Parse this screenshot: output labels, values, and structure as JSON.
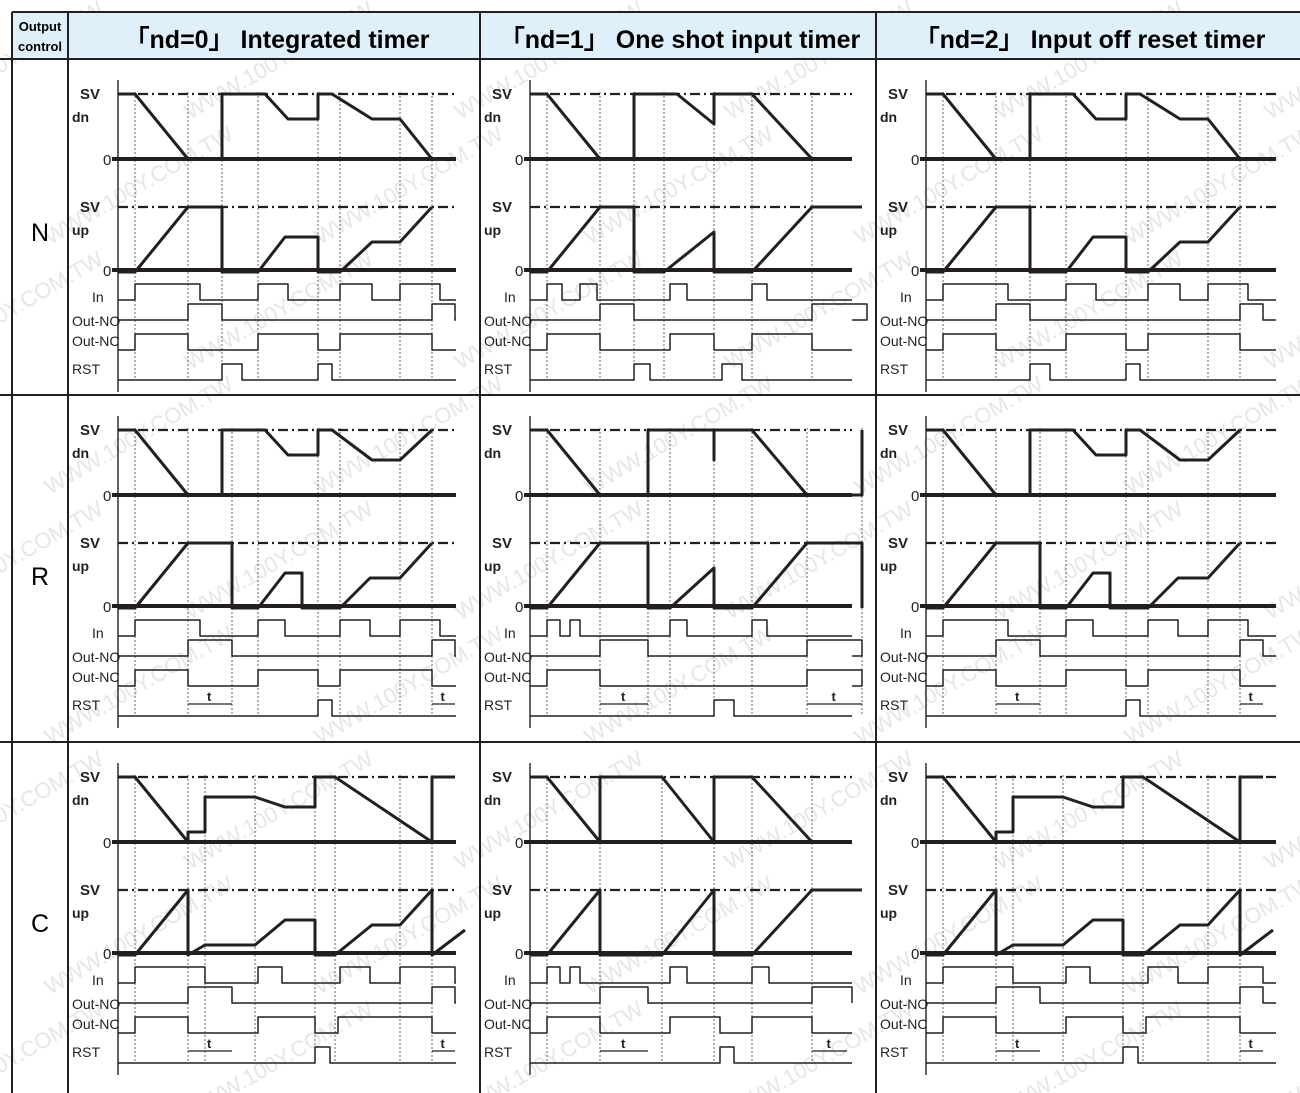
{
  "header": {
    "corner_line1": "Output",
    "corner_line2": "control",
    "columns": [
      "「nd=0」 Integrated timer",
      "「nd=1」 One shot input  timer",
      "「nd=2」 Input  off  reset  timer"
    ]
  },
  "rows": [
    "N",
    "R",
    "C"
  ],
  "signal_labels": {
    "sv": "SV",
    "dn": "dn",
    "up": "up",
    "zero": "0",
    "in": "In",
    "out_no": "Out-NO",
    "out_nc": "Out-NC",
    "rst": "RST",
    "t": "t"
  },
  "watermark": "WWW.100Y.COM.TW",
  "colors": {
    "header_bg": "#dff0fa",
    "line": "#231f20",
    "grid": "#555555",
    "watermark": "#e6e6e6"
  }
}
